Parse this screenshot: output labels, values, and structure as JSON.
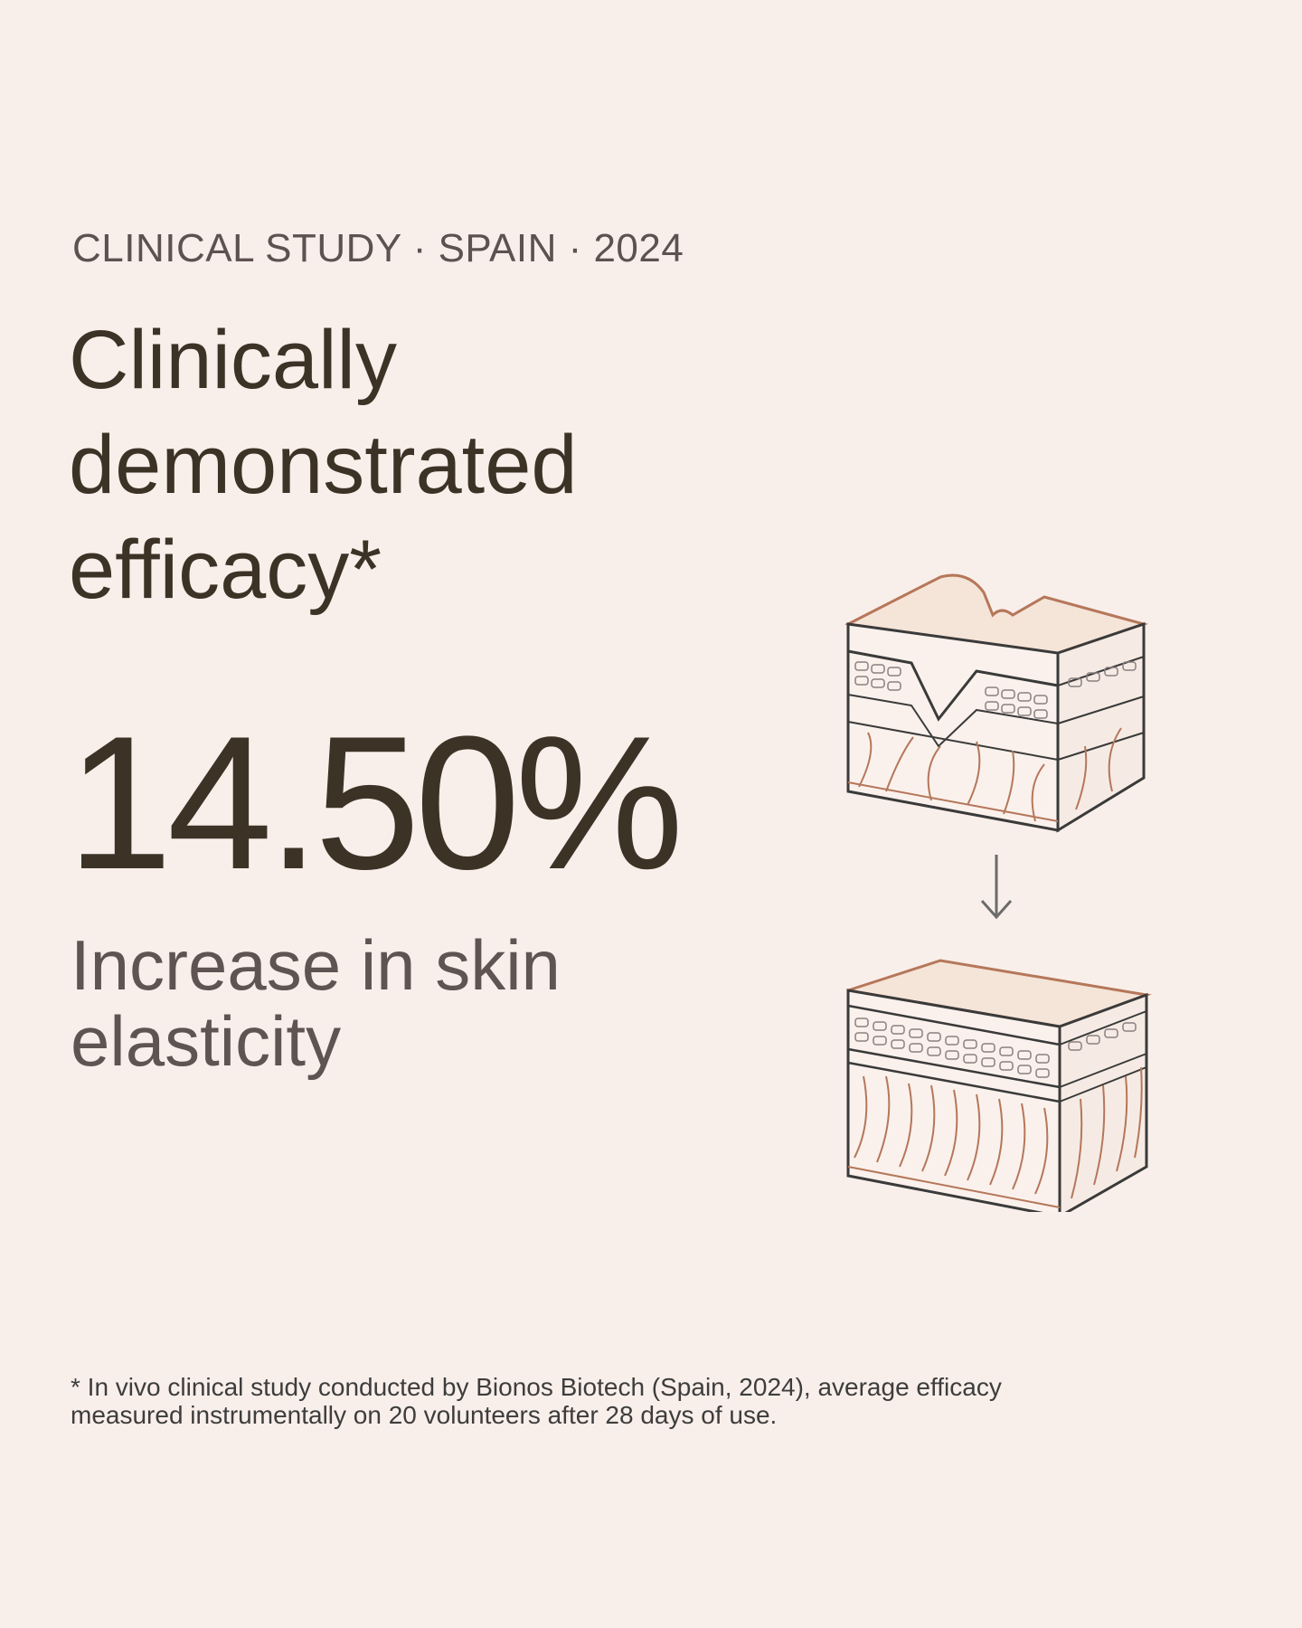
{
  "eyebrow": "CLINICAL STUDY · SPAIN · 2024",
  "headline": {
    "line1": "Clinically",
    "line2": "demonstrated",
    "line3": "efficacy*"
  },
  "stat": {
    "value": "14.50%",
    "label_line1": "Increase in skin",
    "label_line2": "elasticity"
  },
  "footnote": {
    "line1": "* In vivo clinical study conducted by Bionos Biotech (Spain, 2024), average efficacy",
    "line2": "measured instrumentally on 20 volunteers after 28 days of use."
  },
  "illustration": {
    "before": "wrinkled-skin-cross-section-icon",
    "arrow": "arrow-down-icon",
    "after": "smooth-skin-cross-section-icon"
  },
  "colors": {
    "background": "#f9efea",
    "heading": "#3d3226",
    "subtext": "#5f5452",
    "accent_copper": "#b5775a",
    "outline": "#3a3a3a"
  }
}
